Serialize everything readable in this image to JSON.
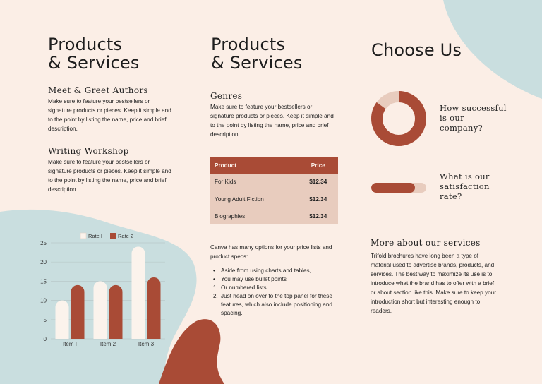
{
  "colors": {
    "background": "#fbeee6",
    "accent": "#a94b36",
    "light": "#e8ccbe",
    "teal": "#c9dedf",
    "cream": "#fbf3ec"
  },
  "panel1": {
    "title_line1": "Products",
    "title_line2": "& Services",
    "section1_heading": "Meet & Greet Authors",
    "section1_body": "Make sure to feature your bestsellers or signature products or pieces. Keep it simple and to the point by listing the name, price and brief description.",
    "section2_heading": "Writing Workshop",
    "section2_body": "Make sure to feature your bestsellers or signature products or pieces. Keep it simple and to the point by listing the name, price and brief description."
  },
  "panel2": {
    "title_line1": "Products",
    "title_line2": "& Services",
    "genres_heading": "Genres",
    "genres_body": "Make sure to feature your bestsellers or signature products or pieces. Keep it simple and to the point by listing the name, price and brief description.",
    "table": {
      "headers": [
        "Product",
        "Price"
      ],
      "rows": [
        [
          "For Kids",
          "$12.34"
        ],
        [
          "Young Adult Fiction",
          "$12.34"
        ],
        [
          "Biographies",
          "$12.34"
        ]
      ]
    },
    "specs_intro": "Canva has many options for your price lists and product specs:",
    "specs_items": [
      {
        "marker": "•",
        "text": "Aside from using charts and tables,"
      },
      {
        "marker": "•",
        "text": "You may use bullet points"
      },
      {
        "marker": "1.",
        "text": "Or numbered lists"
      },
      {
        "marker": "2.",
        "text": "Just head on over to the top panel for these features, which also include positioning and spacing."
      }
    ]
  },
  "panel3": {
    "title": "Choose Us",
    "question1": "How successful is our company?",
    "question1_level": 0.85,
    "question2": "What is our satisfaction rate?",
    "question2_level": 0.8,
    "more_heading": "More about our services",
    "more_body": "Trifold brochures have long been a type of material used to advertise brands, products, and services. The best way to maximize its use is to introduce what the brand has to offer with a brief or about section like this. Make sure to keep your introduction short but interesting enough to readers."
  },
  "chart_data": {
    "type": "bar",
    "categories": [
      "Item I",
      "Item 2",
      "Item 3"
    ],
    "series": [
      {
        "name": "Rate I",
        "values": [
          10,
          15,
          24
        ],
        "color": "#fbf3ec"
      },
      {
        "name": "Rate 2",
        "values": [
          14,
          14,
          16
        ],
        "color": "#a94b36"
      }
    ],
    "ylim": [
      0,
      25
    ],
    "yticks": [
      "0",
      "5",
      "10",
      "15",
      "20",
      "25"
    ],
    "grid": true,
    "legend": "top"
  }
}
